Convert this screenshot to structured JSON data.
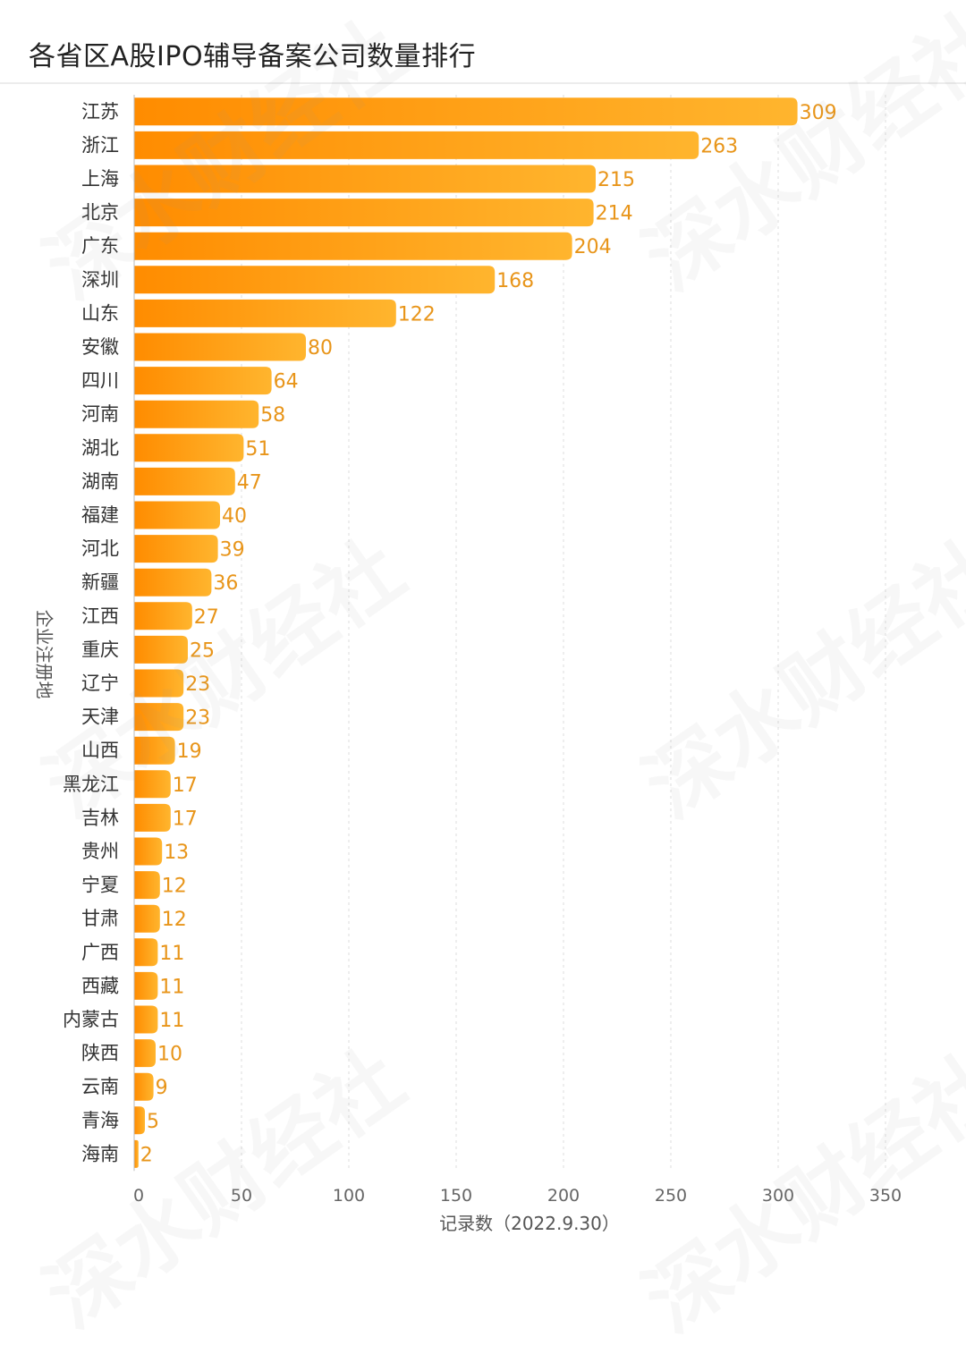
{
  "title": "各省区A股IPO辅导备案公司数量排行",
  "watermark_text": "深水财经社",
  "chart_data": {
    "type": "bar",
    "orientation": "horizontal",
    "title": "各省区A股IPO辅导备案公司数量排行",
    "xlabel": "记录数（2022.9.30）",
    "ylabel": "企业注册地",
    "xlim": [
      0,
      350
    ],
    "xticks": [
      0,
      50,
      100,
      150,
      200,
      250,
      300,
      350
    ],
    "grid": "vertical dashed",
    "bar_color_start": "#ff8c00",
    "bar_color_end": "#ffb52e",
    "label_color": "#e8951a",
    "categories": [
      "江苏",
      "浙江",
      "上海",
      "北京",
      "广东",
      "深圳",
      "山东",
      "安徽",
      "四川",
      "河南",
      "湖北",
      "湖南",
      "福建",
      "河北",
      "新疆",
      "江西",
      "重庆",
      "辽宁",
      "天津",
      "山西",
      "黑龙江",
      "吉林",
      "贵州",
      "宁夏",
      "甘肃",
      "广西",
      "西藏",
      "内蒙古",
      "陕西",
      "云南",
      "青海",
      "海南"
    ],
    "values": [
      309,
      263,
      215,
      214,
      204,
      168,
      122,
      80,
      64,
      58,
      51,
      47,
      40,
      39,
      36,
      27,
      25,
      23,
      23,
      19,
      17,
      17,
      13,
      12,
      12,
      11,
      11,
      11,
      10,
      9,
      5,
      2
    ]
  }
}
